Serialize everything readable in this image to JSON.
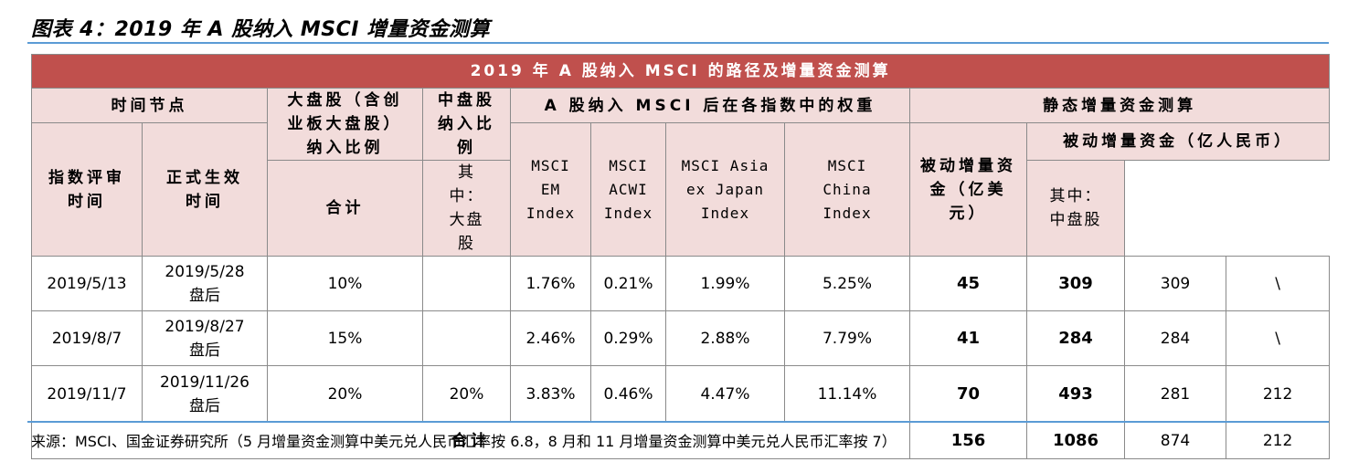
{
  "title": "图表 4：2019 年 A 股纳入 MSCI 增量资金测算",
  "table": {
    "banner": "2019 年 A 股纳入 MSCI 的路径及增量资金测算",
    "group_headers": {
      "time_nodes": "时间节点",
      "weights": "A 股纳入 MSCI 后在各指数中的权重",
      "static_flow": "静态增量资金测算"
    },
    "col_headers": {
      "review_time": "指数评审时间",
      "effective_time": "正式生效时间",
      "large_cap": "大盘股（含创业板大盘股）纳入比例",
      "mid_cap": "中盘股纳入比例",
      "em_index": "MSCI EM Index",
      "acwi_index": "MSCI ACWI Index",
      "asia_ex_japan": "MSCI Asia ex Japan Index",
      "china_index": "MSCI China Index",
      "passive_usd": "被动增量资金（亿美元）",
      "passive_rmb": "被动增量资金（亿人民币）",
      "total": "合计",
      "of_which_large": "其中：大盘股",
      "of_which_mid": "其中：中盘股"
    },
    "rows": [
      {
        "review": "2019/5/13",
        "effective_date": "2019/5/28",
        "effective_note": "盘后",
        "large": "10%",
        "mid": "",
        "em": "1.76%",
        "acwi": "0.21%",
        "asia": "1.99%",
        "china": "5.25%",
        "usd": "45",
        "rmb_total": "309",
        "rmb_large": "309",
        "rmb_mid": "\\"
      },
      {
        "review": "2019/8/7",
        "effective_date": "2019/8/27",
        "effective_note": "盘后",
        "large": "15%",
        "mid": "",
        "em": "2.46%",
        "acwi": "0.29%",
        "asia": "2.88%",
        "china": "7.79%",
        "usd": "41",
        "rmb_total": "284",
        "rmb_large": "284",
        "rmb_mid": "\\"
      },
      {
        "review": "2019/11/7",
        "effective_date": "2019/11/26",
        "effective_note": "盘后",
        "large": "20%",
        "mid": "20%",
        "em": "3.83%",
        "acwi": "0.46%",
        "asia": "4.47%",
        "china": "11.14%",
        "usd": "70",
        "rmb_total": "493",
        "rmb_large": "281",
        "rmb_mid": "212"
      }
    ],
    "total_row": {
      "label": "合计",
      "usd": "156",
      "rmb_total": "1086",
      "rmb_large": "874",
      "rmb_mid": "212"
    }
  },
  "source": "来源：MSCI、国金证券研究所（5 月增量资金测算中美元兑人民币汇率按 6.8，8 月和 11 月增量资金测算中美元兑人民币汇率按 7）"
}
